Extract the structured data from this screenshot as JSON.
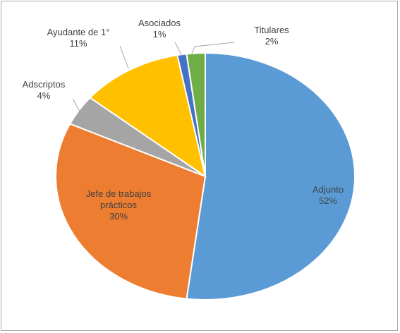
{
  "chart_data": {
    "type": "pie",
    "title": "",
    "slices": [
      {
        "category": "Adjunto",
        "value": 52,
        "percent_label": "52%",
        "color": "#5b9bd5"
      },
      {
        "category": "Jefe de trabajos prácticos",
        "value": 30,
        "percent_label": "30%",
        "color": "#ed7d31"
      },
      {
        "category": "Adscriptos",
        "value": 4,
        "percent_label": "4%",
        "color": "#a5a5a5"
      },
      {
        "category": "Ayudante de 1°",
        "value": 11,
        "percent_label": "11%",
        "color": "#ffc000"
      },
      {
        "category": "Asociados",
        "value": 1,
        "percent_label": "1%",
        "color": "#4472c4"
      },
      {
        "category": "Titulares",
        "value": 2,
        "percent_label": "2%",
        "color": "#70ad47"
      }
    ],
    "label_lines": {
      "jefe_line1": "Jefe de trabajos",
      "jefe_line2": "prácticos"
    },
    "legend": "none"
  }
}
